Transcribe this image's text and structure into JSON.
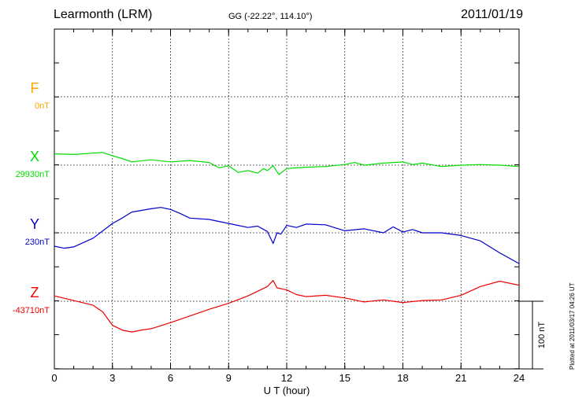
{
  "header": {
    "station": "Learmonth (LRM)",
    "coords": "GG (-22.22°, 114.10°)",
    "date": "2011/01/19"
  },
  "plotted_note": "Plotted at 2011/03/17 04:26 UT",
  "chart_data": {
    "type": "line",
    "xlabel": "U T (hour)",
    "xlim": [
      0,
      24
    ],
    "xticks": [
      "0",
      "3",
      "6",
      "9",
      "12",
      "15",
      "18",
      "21",
      "24"
    ],
    "scale_bar": "100 nT",
    "grid": true,
    "series": [
      {
        "name": "F",
        "baseline_label": "0nT",
        "color": "#ffa500",
        "x": [],
        "values": []
      },
      {
        "name": "X",
        "baseline_label": "29930nT",
        "color": "#00dd00",
        "x": [
          0,
          1,
          2,
          2.5,
          3,
          3.5,
          4,
          5,
          6,
          7,
          8,
          8.5,
          9,
          9.5,
          10,
          10.5,
          10.8,
          11,
          11.3,
          11.6,
          12,
          12.5,
          13,
          14,
          15,
          15.5,
          16,
          17,
          17.5,
          18,
          18.5,
          19,
          20,
          21,
          22,
          23,
          24
        ],
        "values": [
          29947,
          29946,
          29948,
          29949,
          29944,
          29940,
          29935,
          29938,
          29935,
          29937,
          29934,
          29926,
          29929,
          29919,
          29922,
          29918,
          29925,
          29922,
          29929,
          29916,
          29925,
          29926,
          29927,
          29928,
          29931,
          29934,
          29930,
          29933,
          29934,
          29935,
          29931,
          29933,
          29928,
          29930,
          29931,
          29930,
          29928
        ]
      },
      {
        "name": "Y",
        "baseline_label": "230nT",
        "color": "#0000cc",
        "x": [
          0,
          0.5,
          1,
          2,
          3,
          3.5,
          4,
          5,
          5.5,
          6,
          6.5,
          7,
          8,
          9,
          10,
          10.5,
          11,
          11.3,
          11.5,
          11.7,
          12,
          12.5,
          13,
          14,
          15,
          16,
          17,
          17.5,
          18,
          18.5,
          19,
          20,
          21,
          22,
          23,
          24
        ],
        "values": [
          210,
          207,
          209,
          222,
          244,
          252,
          261,
          266,
          268,
          265,
          259,
          252,
          250,
          244,
          238,
          240,
          232,
          214,
          230,
          228,
          241,
          238,
          243,
          242,
          233,
          236,
          230,
          239,
          231,
          235,
          230,
          230,
          226,
          218,
          200,
          184
        ]
      },
      {
        "name": "Z",
        "baseline_label": "-43710nT",
        "color": "#ee0000",
        "x": [
          0,
          1,
          2,
          2.5,
          3,
          3.5,
          4,
          4.5,
          5,
          6,
          7,
          8,
          9,
          10,
          10.5,
          11,
          11.3,
          11.5,
          12,
          12.5,
          13,
          14,
          15,
          16,
          17,
          18,
          19,
          20,
          21,
          22,
          23,
          24
        ],
        "values": [
          -43702,
          -43709,
          -43716,
          -43726,
          -43746,
          -43753,
          -43756,
          -43753,
          -43751,
          -43742,
          -43732,
          -43722,
          -43713,
          -43702,
          -43695,
          -43688,
          -43679,
          -43690,
          -43693,
          -43700,
          -43703,
          -43701,
          -43705,
          -43711,
          -43708,
          -43712,
          -43709,
          -43708,
          -43701,
          -43688,
          -43680,
          -43686
        ]
      }
    ]
  }
}
